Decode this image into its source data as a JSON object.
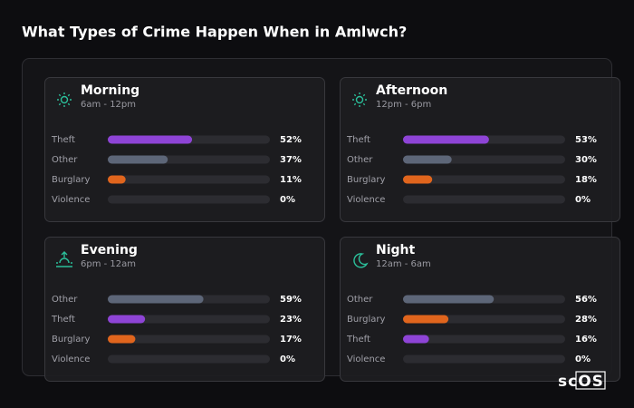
{
  "title": "What Types of Crime Happen When in Amlwch?",
  "logo": "scOS",
  "chart_data": [
    {
      "type": "bar",
      "title": "Morning",
      "subtitle": "6am - 12pm",
      "categories": [
        "Theft",
        "Other",
        "Burglary",
        "Violence"
      ],
      "values": [
        52,
        37,
        11,
        0
      ],
      "value_labels": [
        "52%",
        "37%",
        "11%",
        "0%"
      ],
      "colors": [
        "#8e44d6",
        "#5d6678",
        "#e0651d",
        "#5d6678"
      ],
      "xlim": [
        0,
        100
      ]
    },
    {
      "type": "bar",
      "title": "Afternoon",
      "subtitle": "12pm - 6pm",
      "categories": [
        "Theft",
        "Other",
        "Burglary",
        "Violence"
      ],
      "values": [
        53,
        30,
        18,
        0
      ],
      "value_labels": [
        "53%",
        "30%",
        "18%",
        "0%"
      ],
      "colors": [
        "#8e44d6",
        "#5d6678",
        "#e0651d",
        "#5d6678"
      ],
      "xlim": [
        0,
        100
      ]
    },
    {
      "type": "bar",
      "title": "Evening",
      "subtitle": "6pm - 12am",
      "categories": [
        "Other",
        "Theft",
        "Burglary",
        "Violence"
      ],
      "values": [
        59,
        23,
        17,
        0
      ],
      "value_labels": [
        "59%",
        "23%",
        "17%",
        "0%"
      ],
      "colors": [
        "#5d6678",
        "#8e44d6",
        "#e0651d",
        "#5d6678"
      ],
      "xlim": [
        0,
        100
      ]
    },
    {
      "type": "bar",
      "title": "Night",
      "subtitle": "12am - 6am",
      "categories": [
        "Other",
        "Burglary",
        "Theft",
        "Violence"
      ],
      "values": [
        56,
        28,
        16,
        0
      ],
      "value_labels": [
        "56%",
        "28%",
        "16%",
        "0%"
      ],
      "colors": [
        "#5d6678",
        "#e0651d",
        "#8e44d6",
        "#5d6678"
      ],
      "xlim": [
        0,
        100
      ]
    }
  ]
}
